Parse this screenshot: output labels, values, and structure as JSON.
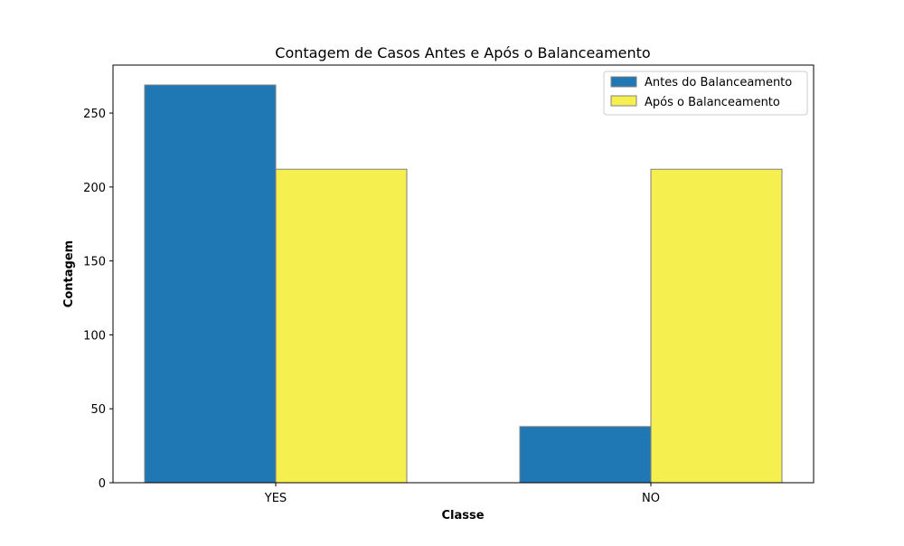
{
  "chart_data": {
    "type": "bar",
    "title": "Contagem de Casos Antes e Após o Balanceamento",
    "xlabel": "Classe",
    "ylabel": "Contagem",
    "categories": [
      "YES",
      "NO"
    ],
    "series": [
      {
        "name": "Antes do Balanceamento",
        "values": [
          269,
          38
        ],
        "color": "#1f77b4"
      },
      {
        "name": "Após o Balanceamento",
        "values": [
          212,
          212
        ],
        "color": "#f5ef50"
      }
    ],
    "bar_edge_color": "#808080",
    "ylim": [
      0,
      282.45
    ],
    "yticks": [
      0,
      50,
      100,
      150,
      200,
      250
    ],
    "grid": false,
    "legend_position": "top-right"
  }
}
